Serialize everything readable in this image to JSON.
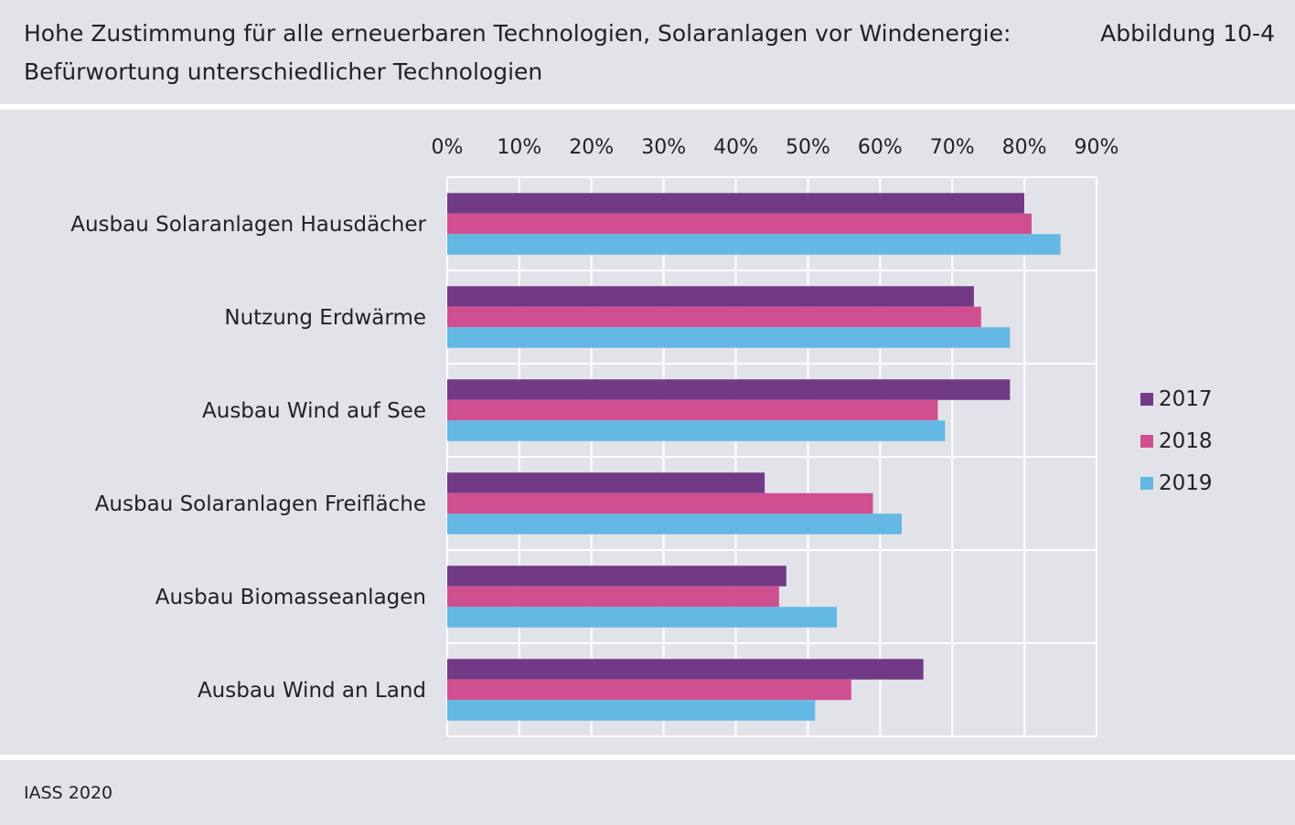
{
  "header": {
    "title_line1": "Hohe Zustimmung für alle erneuerbaren Technologien, Solaranlagen vor Windenergie:",
    "title_line2": "Befürwortung unterschiedlicher Technologien",
    "figure_label": "Abbildung 10-4"
  },
  "footer": {
    "source": "IASS 2020"
  },
  "chart_data": {
    "type": "bar",
    "orientation": "horizontal",
    "categories": [
      "Ausbau Solaranlagen Hausdächer",
      "Nutzung Erdwärme",
      "Ausbau Wind auf See",
      "Ausbau Solaranlagen Freifläche",
      "Ausbau Biomasseanlagen",
      "Ausbau Wind an Land"
    ],
    "series": [
      {
        "name": "2017",
        "color": "#723a85",
        "values": [
          80,
          73,
          78,
          44,
          47,
          66
        ]
      },
      {
        "name": "2018",
        "color": "#d04f91",
        "values": [
          81,
          74,
          68,
          59,
          46,
          56
        ]
      },
      {
        "name": "2019",
        "color": "#63b8e4",
        "values": [
          85,
          78,
          69,
          63,
          54,
          51
        ]
      }
    ],
    "xlim": [
      0,
      90
    ],
    "xticks": [
      "0%",
      "10%",
      "20%",
      "30%",
      "40%",
      "50%",
      "60%",
      "70%",
      "80%",
      "90%"
    ],
    "x_axis_position": "top",
    "grid": true,
    "legend": "right"
  }
}
